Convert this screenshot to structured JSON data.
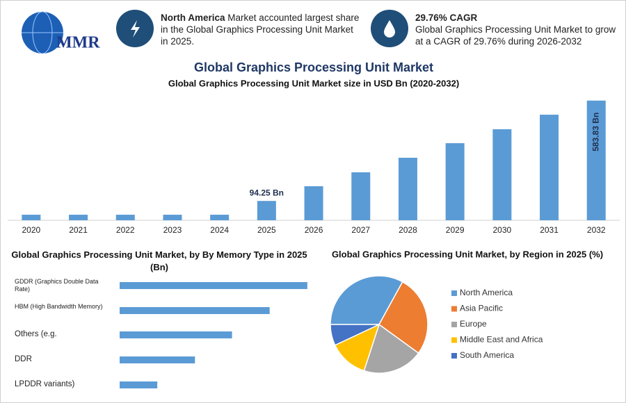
{
  "header": {
    "logo": "MMR",
    "highlight1": {
      "bold": "North America",
      "text": "Market accounted largest share in the Global Graphics Processing Unit Market in 2025."
    },
    "highlight2": {
      "title": "29.76% CAGR",
      "text": "Global Graphics Processing Unit Market to grow at a CAGR of 29.76% during 2026-2032"
    },
    "title": "Global Graphics Processing Unit Market"
  },
  "chart_data": [
    {
      "type": "bar",
      "title": "Global Graphics Processing Unit Market size in USD Bn (2020-2032)",
      "categories": [
        "2020",
        "2021",
        "2022",
        "2023",
        "2024",
        "2025",
        "2026",
        "2027",
        "2028",
        "2029",
        "2030",
        "2031",
        "2032"
      ],
      "values": [
        27,
        27,
        27,
        27,
        27,
        94.25,
        166,
        234,
        305,
        376,
        444,
        515,
        583.83
      ],
      "value_labels": [
        null,
        null,
        null,
        null,
        null,
        "94.25 Bn",
        null,
        null,
        null,
        null,
        null,
        null,
        "583.83 Bn"
      ],
      "color": "#5b9bd5",
      "ylim": [
        0,
        600
      ]
    },
    {
      "type": "barh",
      "title": "Global Graphics Processing Unit Market, by By Memory Type in 2025 (Bn)",
      "categories": [
        "GDDR (Graphics Double Data Rate)",
        "HBM (High Bandwidth Memory)",
        "Others (e.g.",
        "DDR",
        "LPDDR variants)"
      ],
      "values": [
        31.4,
        25.1,
        18.8,
        12.6,
        6.3
      ],
      "color": "#5b9bd5",
      "xlim": [
        0,
        32
      ]
    },
    {
      "type": "pie",
      "title": "Global Graphics Processing Unit Market, by Region in 2025 (%)",
      "categories": [
        "North America",
        "Asia Pacific",
        "Europe",
        "Middle East and Africa",
        "South America"
      ],
      "values": [
        33,
        27,
        20,
        13,
        7
      ],
      "colors": [
        "#5b9bd5",
        "#ed7d31",
        "#a5a5a5",
        "#ffc000",
        "#4472c4"
      ],
      "legend": "right"
    }
  ]
}
